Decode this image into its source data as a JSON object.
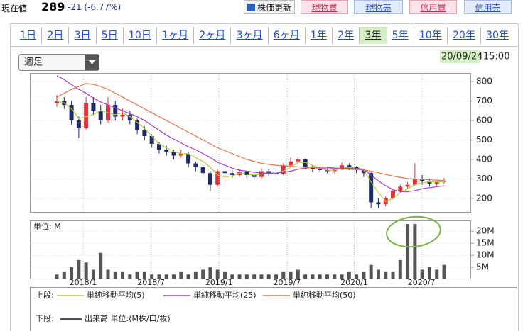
{
  "header": {
    "price_label": "現在値",
    "price": "289",
    "change": "-21 (-6.77%)",
    "buttons": [
      "株価更新",
      "現物買",
      "現物売",
      "信用買",
      "信用売"
    ]
  },
  "tabs": [
    "1日",
    "2日",
    "3日",
    "5日",
    "10日",
    "1ヶ月",
    "2ヶ月",
    "3ヶ月",
    "6ヶ月",
    "1年",
    "2年",
    "3年",
    "5年",
    "10年",
    "20年",
    "30年"
  ],
  "dropdown": "週足",
  "timestamp": {
    "date": "20/09/24",
    "time": "15:00"
  },
  "legend": {
    "upper": "上段:",
    "lower": "下段:"
  },
  "chart_data": [
    {
      "type": "candlestick",
      "categories": [
        null,
        null,
        null,
        null,
        null,
        null,
        null,
        null,
        null,
        null,
        null,
        null,
        null,
        null,
        null,
        null,
        null,
        null,
        null,
        null,
        null,
        null,
        null,
        null,
        null,
        null,
        null,
        null,
        null,
        null,
        null,
        null,
        null,
        null,
        null,
        null,
        null,
        null,
        null,
        null,
        null,
        null,
        null,
        null,
        null,
        null,
        null,
        null,
        null,
        null,
        null,
        null,
        null,
        null
      ],
      "open": [
        690,
        700,
        680,
        600,
        560,
        690,
        650,
        600,
        680,
        620,
        630,
        600,
        550,
        520,
        480,
        450,
        440,
        420,
        430,
        380,
        360,
        330,
        270,
        340,
        330,
        320,
        335,
        320,
        310,
        340,
        330,
        325,
        370,
        390,
        400,
        360,
        350,
        345,
        340,
        350,
        370,
        360,
        345,
        330,
        180,
        170,
        200,
        240,
        260,
        270,
        300,
        290,
        275,
        285
      ],
      "high": [
        730,
        720,
        700,
        620,
        720,
        720,
        680,
        720,
        700,
        660,
        650,
        610,
        570,
        530,
        490,
        470,
        450,
        450,
        440,
        390,
        370,
        340,
        350,
        350,
        345,
        350,
        345,
        330,
        355,
        350,
        345,
        380,
        410,
        415,
        405,
        370,
        360,
        355,
        360,
        385,
        380,
        365,
        350,
        335,
        200,
        210,
        250,
        270,
        285,
        380,
        320,
        300,
        295,
        305
      ],
      "low": [
        670,
        660,
        580,
        510,
        550,
        630,
        580,
        590,
        600,
        600,
        580,
        530,
        500,
        460,
        430,
        420,
        400,
        410,
        360,
        340,
        310,
        240,
        260,
        310,
        305,
        310,
        305,
        295,
        300,
        315,
        310,
        320,
        360,
        375,
        350,
        335,
        335,
        330,
        330,
        345,
        345,
        330,
        310,
        150,
        150,
        160,
        195,
        230,
        250,
        265,
        270,
        260,
        265,
        275
      ],
      "close": [
        700,
        680,
        600,
        560,
        690,
        650,
        600,
        680,
        620,
        630,
        600,
        550,
        520,
        480,
        450,
        440,
        420,
        430,
        380,
        360,
        330,
        270,
        340,
        330,
        320,
        335,
        320,
        310,
        340,
        330,
        325,
        370,
        390,
        400,
        360,
        350,
        345,
        340,
        350,
        370,
        360,
        345,
        330,
        180,
        170,
        200,
        240,
        260,
        270,
        300,
        290,
        275,
        285,
        290
      ],
      "up_color": "#e3303c",
      "down_color": "#1c2a66",
      "series": [
        {
          "name": "単純移動平均(5)",
          "color": "#b4cc3c",
          "values": [
            700,
            690,
            660,
            610,
            620,
            630,
            650,
            640,
            630,
            640,
            620,
            590,
            560,
            520,
            480,
            460,
            440,
            430,
            430,
            410,
            390,
            360,
            320,
            310,
            315,
            330,
            325,
            320,
            325,
            330,
            330,
            340,
            360,
            385,
            385,
            370,
            355,
            345,
            345,
            355,
            360,
            355,
            345,
            285,
            230,
            185,
            200,
            230,
            250,
            270,
            280,
            285,
            285,
            285
          ]
        },
        {
          "name": "単純移動平均(25)",
          "color": "#a03cd0",
          "values": [
            830,
            810,
            785,
            760,
            740,
            715,
            695,
            680,
            665,
            650,
            635,
            620,
            600,
            575,
            550,
            525,
            505,
            485,
            465,
            450,
            430,
            410,
            385,
            370,
            355,
            345,
            340,
            335,
            330,
            330,
            330,
            335,
            340,
            350,
            355,
            360,
            360,
            360,
            355,
            355,
            355,
            355,
            350,
            320,
            290,
            265,
            245,
            235,
            235,
            240,
            250,
            255,
            260,
            265
          ]
        },
        {
          "name": "単純移動平均(50)",
          "color": "#e0774a",
          "values": [
            720,
            740,
            760,
            775,
            790,
            785,
            775,
            760,
            740,
            720,
            700,
            680,
            660,
            640,
            620,
            600,
            580,
            560,
            540,
            520,
            500,
            480,
            460,
            445,
            430,
            415,
            400,
            390,
            380,
            375,
            370,
            368,
            365,
            362,
            360,
            358,
            355,
            353,
            352,
            350,
            350,
            348,
            346,
            340,
            332,
            323,
            315,
            308,
            302,
            300,
            298,
            296,
            294,
            292
          ]
        }
      ],
      "ylim": [
        127,
        844
      ],
      "yticks": [
        200,
        300,
        400,
        500,
        600,
        700,
        800
      ],
      "grid": true
    },
    {
      "type": "bar",
      "unit_label": "単位: M",
      "series": [
        {
          "name": "出来高 単位:(M株/口/枚)",
          "color": "#555555",
          "values": [
            2,
            3,
            5,
            8,
            7,
            4,
            11,
            4,
            3,
            3,
            2,
            3,
            3,
            2,
            2,
            2,
            2,
            3,
            2,
            3,
            4,
            5,
            4,
            3,
            2,
            2,
            2,
            2,
            2,
            2,
            2,
            3,
            3,
            4,
            2,
            2,
            2,
            2,
            2,
            2,
            3,
            2,
            3,
            6,
            4,
            3,
            3,
            8,
            23,
            23,
            4,
            5,
            4,
            6
          ]
        }
      ],
      "ylim": [
        0,
        24.5
      ],
      "yticks": [
        {
          "value": 5,
          "label": "5M"
        },
        {
          "value": 10,
          "label": "10M"
        },
        {
          "value": 15,
          "label": "15M"
        },
        {
          "value": 20,
          "label": "20M"
        }
      ],
      "xticks": [
        {
          "value": 3.6,
          "label": "2018/1"
        },
        {
          "value": 12.9,
          "label": "2018/7"
        },
        {
          "value": 22.2,
          "label": "2019/1"
        },
        {
          "value": 31.5,
          "label": "2019/7"
        },
        {
          "value": 40.7,
          "label": "2020/1"
        },
        {
          "value": 49.9,
          "label": "2020/7"
        }
      ],
      "grid": true
    }
  ]
}
